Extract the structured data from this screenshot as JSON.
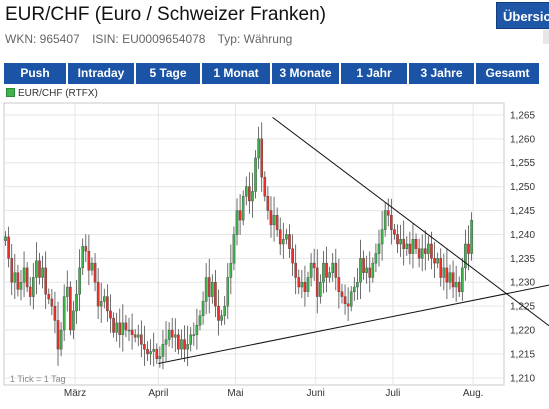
{
  "header": {
    "title": "EUR/CHF (Euro / Schweizer Franken)",
    "overview_button": "Übersicht",
    "wkn": "WKN: 965407",
    "isin": "ISIN: EU0009654078",
    "type": "Typ: Währung"
  },
  "ranges": [
    "Push",
    "Intraday",
    "5 Tage",
    "1 Monat",
    "3 Monate",
    "1 Jahr",
    "3 Jahre",
    "Gesamt"
  ],
  "legend": {
    "label": "EUR/CHF (RTFX)"
  },
  "tick_note": "1 Tick = 1 Tag",
  "colors": {
    "accent": "#1b54a6",
    "up": "#3cb44b",
    "down": "#e8312a"
  },
  "chart_data": {
    "type": "candlestick",
    "series_name": "EUR/CHF (RTFX)",
    "yticks": [
      1.21,
      1.215,
      1.22,
      1.225,
      1.23,
      1.235,
      1.24,
      1.245,
      1.25,
      1.255,
      1.26,
      1.265
    ],
    "ylim": [
      1.2085,
      1.2675
    ],
    "xlim": [
      0,
      162
    ],
    "x_ticks": [
      {
        "label": "März",
        "x": 23
      },
      {
        "label": "April",
        "x": 50
      },
      {
        "label": "Mai",
        "x": 75
      },
      {
        "label": "Juni",
        "x": 101
      },
      {
        "label": "Juli",
        "x": 126
      },
      {
        "label": "Aug.",
        "x": 152
      }
    ],
    "closes": [
      1.2395,
      1.235,
      1.23,
      1.232,
      1.2285,
      1.23,
      1.233,
      1.229,
      1.227,
      1.231,
      1.2345,
      1.231,
      1.233,
      1.2275,
      1.2265,
      1.225,
      1.222,
      1.216,
      1.22,
      1.227,
      1.229,
      1.22,
      1.224,
      1.2275,
      1.233,
      1.2375,
      1.2365,
      1.2325,
      1.234,
      1.23,
      1.225,
      1.226,
      1.227,
      1.224,
      1.2225,
      1.2195,
      1.2215,
      1.219,
      1.2215,
      1.22,
      1.22,
      1.219,
      1.2185,
      1.219,
      1.217,
      1.216,
      1.215,
      1.2155,
      1.216,
      1.214,
      1.2145,
      1.217,
      1.218,
      1.22,
      1.2185,
      1.219,
      1.216,
      1.218,
      1.216,
      1.217,
      1.219,
      1.219,
      1.221,
      1.223,
      1.226,
      1.231,
      1.227,
      1.23,
      1.225,
      1.222,
      1.223,
      1.225,
      1.231,
      1.234,
      1.24,
      1.245,
      1.243,
      1.248,
      1.25,
      1.247,
      1.249,
      1.256,
      1.26,
      1.252,
      1.248,
      1.245,
      1.242,
      1.244,
      1.241,
      1.238,
      1.239,
      1.24,
      1.237,
      1.234,
      1.231,
      1.229,
      1.23,
      1.228,
      1.231,
      1.234,
      1.233,
      1.227,
      1.23,
      1.234,
      1.231,
      1.232,
      1.234,
      1.231,
      1.228,
      1.227,
      1.2255,
      1.225,
      1.228,
      1.229,
      1.23,
      1.235,
      1.232,
      1.233,
      1.231,
      1.234,
      1.236,
      1.238,
      1.241,
      1.245,
      1.244,
      1.241,
      1.24,
      1.238,
      1.239,
      1.237,
      1.238,
      1.236,
      1.239,
      1.237,
      1.235,
      1.237,
      1.236,
      1.238,
      1.235,
      1.234,
      1.235,
      1.231,
      1.233,
      1.23,
      1.232,
      1.229,
      1.23,
      1.228,
      1.233,
      1.238,
      1.236,
      1.243
    ],
    "trendlines": [
      {
        "x1": 50,
        "y1": 1.213,
        "x2": 162,
        "y2": 1.2275
      },
      {
        "x1": 87,
        "y1": 1.2645,
        "x2": 162,
        "y2": 1.228
      }
    ]
  }
}
